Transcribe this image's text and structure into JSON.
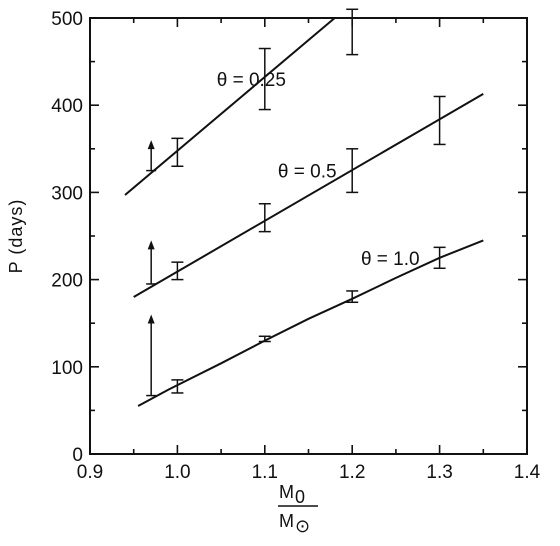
{
  "chart_data": {
    "type": "line",
    "title": "",
    "xlabel": {
      "numerator": "M",
      "numerator_sub": "0",
      "denominator": "M",
      "denominator_sub": "⊙"
    },
    "ylabel": "P (days)",
    "xlim": [
      0.9,
      1.4
    ],
    "ylim": [
      0,
      500
    ],
    "xticks": [
      "0.9",
      "1.0",
      "1.1",
      "1.2",
      "1.3",
      "1.4"
    ],
    "yticks": [
      "0",
      "100",
      "200",
      "300",
      "400",
      "500"
    ],
    "grid": false,
    "series": [
      {
        "name": "θ = 0.25",
        "line": [
          [
            0.94,
            297
          ],
          [
            1.18,
            500
          ]
        ],
        "errorbars": [
          {
            "x": 1.0,
            "y": 345,
            "low": 330,
            "high": 362
          },
          {
            "x": 1.1,
            "y": 430,
            "low": 395,
            "high": 465
          },
          {
            "x": 1.2,
            "y": 485,
            "low": 458,
            "high": 510
          }
        ],
        "lower_limit": {
          "x": 0.97,
          "from": 325,
          "to": 360
        }
      },
      {
        "name": "θ = 0.5",
        "line": [
          [
            0.95,
            180
          ],
          [
            1.35,
            413
          ]
        ],
        "errorbars": [
          {
            "x": 1.0,
            "y": 210,
            "low": 200,
            "high": 220
          },
          {
            "x": 1.1,
            "y": 270,
            "low": 255,
            "high": 287
          },
          {
            "x": 1.2,
            "y": 325,
            "low": 300,
            "high": 350
          },
          {
            "x": 1.3,
            "y": 383,
            "low": 355,
            "high": 410
          }
        ],
        "lower_limit": {
          "x": 0.97,
          "from": 195,
          "to": 245
        }
      },
      {
        "name": "θ = 1.0",
        "line": [
          [
            0.955,
            55
          ],
          [
            0.99,
            74
          ],
          [
            1.05,
            104
          ],
          [
            1.1,
            130
          ],
          [
            1.15,
            155
          ],
          [
            1.2,
            178
          ],
          [
            1.25,
            202
          ],
          [
            1.3,
            225
          ],
          [
            1.35,
            245
          ]
        ],
        "errorbars": [
          {
            "x": 1.0,
            "y": 77,
            "low": 70,
            "high": 85
          },
          {
            "x": 1.1,
            "y": 132,
            "low": 129,
            "high": 135
          },
          {
            "x": 1.2,
            "y": 180,
            "low": 174,
            "high": 187
          },
          {
            "x": 1.3,
            "y": 225,
            "low": 213,
            "high": 237
          }
        ],
        "lower_limit": {
          "x": 0.97,
          "from": 67,
          "to": 160
        }
      }
    ],
    "annotations": [
      {
        "text": "θ = 0.25",
        "series": 0,
        "x": 1.045,
        "y": 430
      },
      {
        "text": "θ = 0.5",
        "series": 1,
        "x": 1.115,
        "y": 325
      },
      {
        "text": "θ = 1.0",
        "series": 2,
        "x": 1.21,
        "y": 225
      }
    ]
  }
}
